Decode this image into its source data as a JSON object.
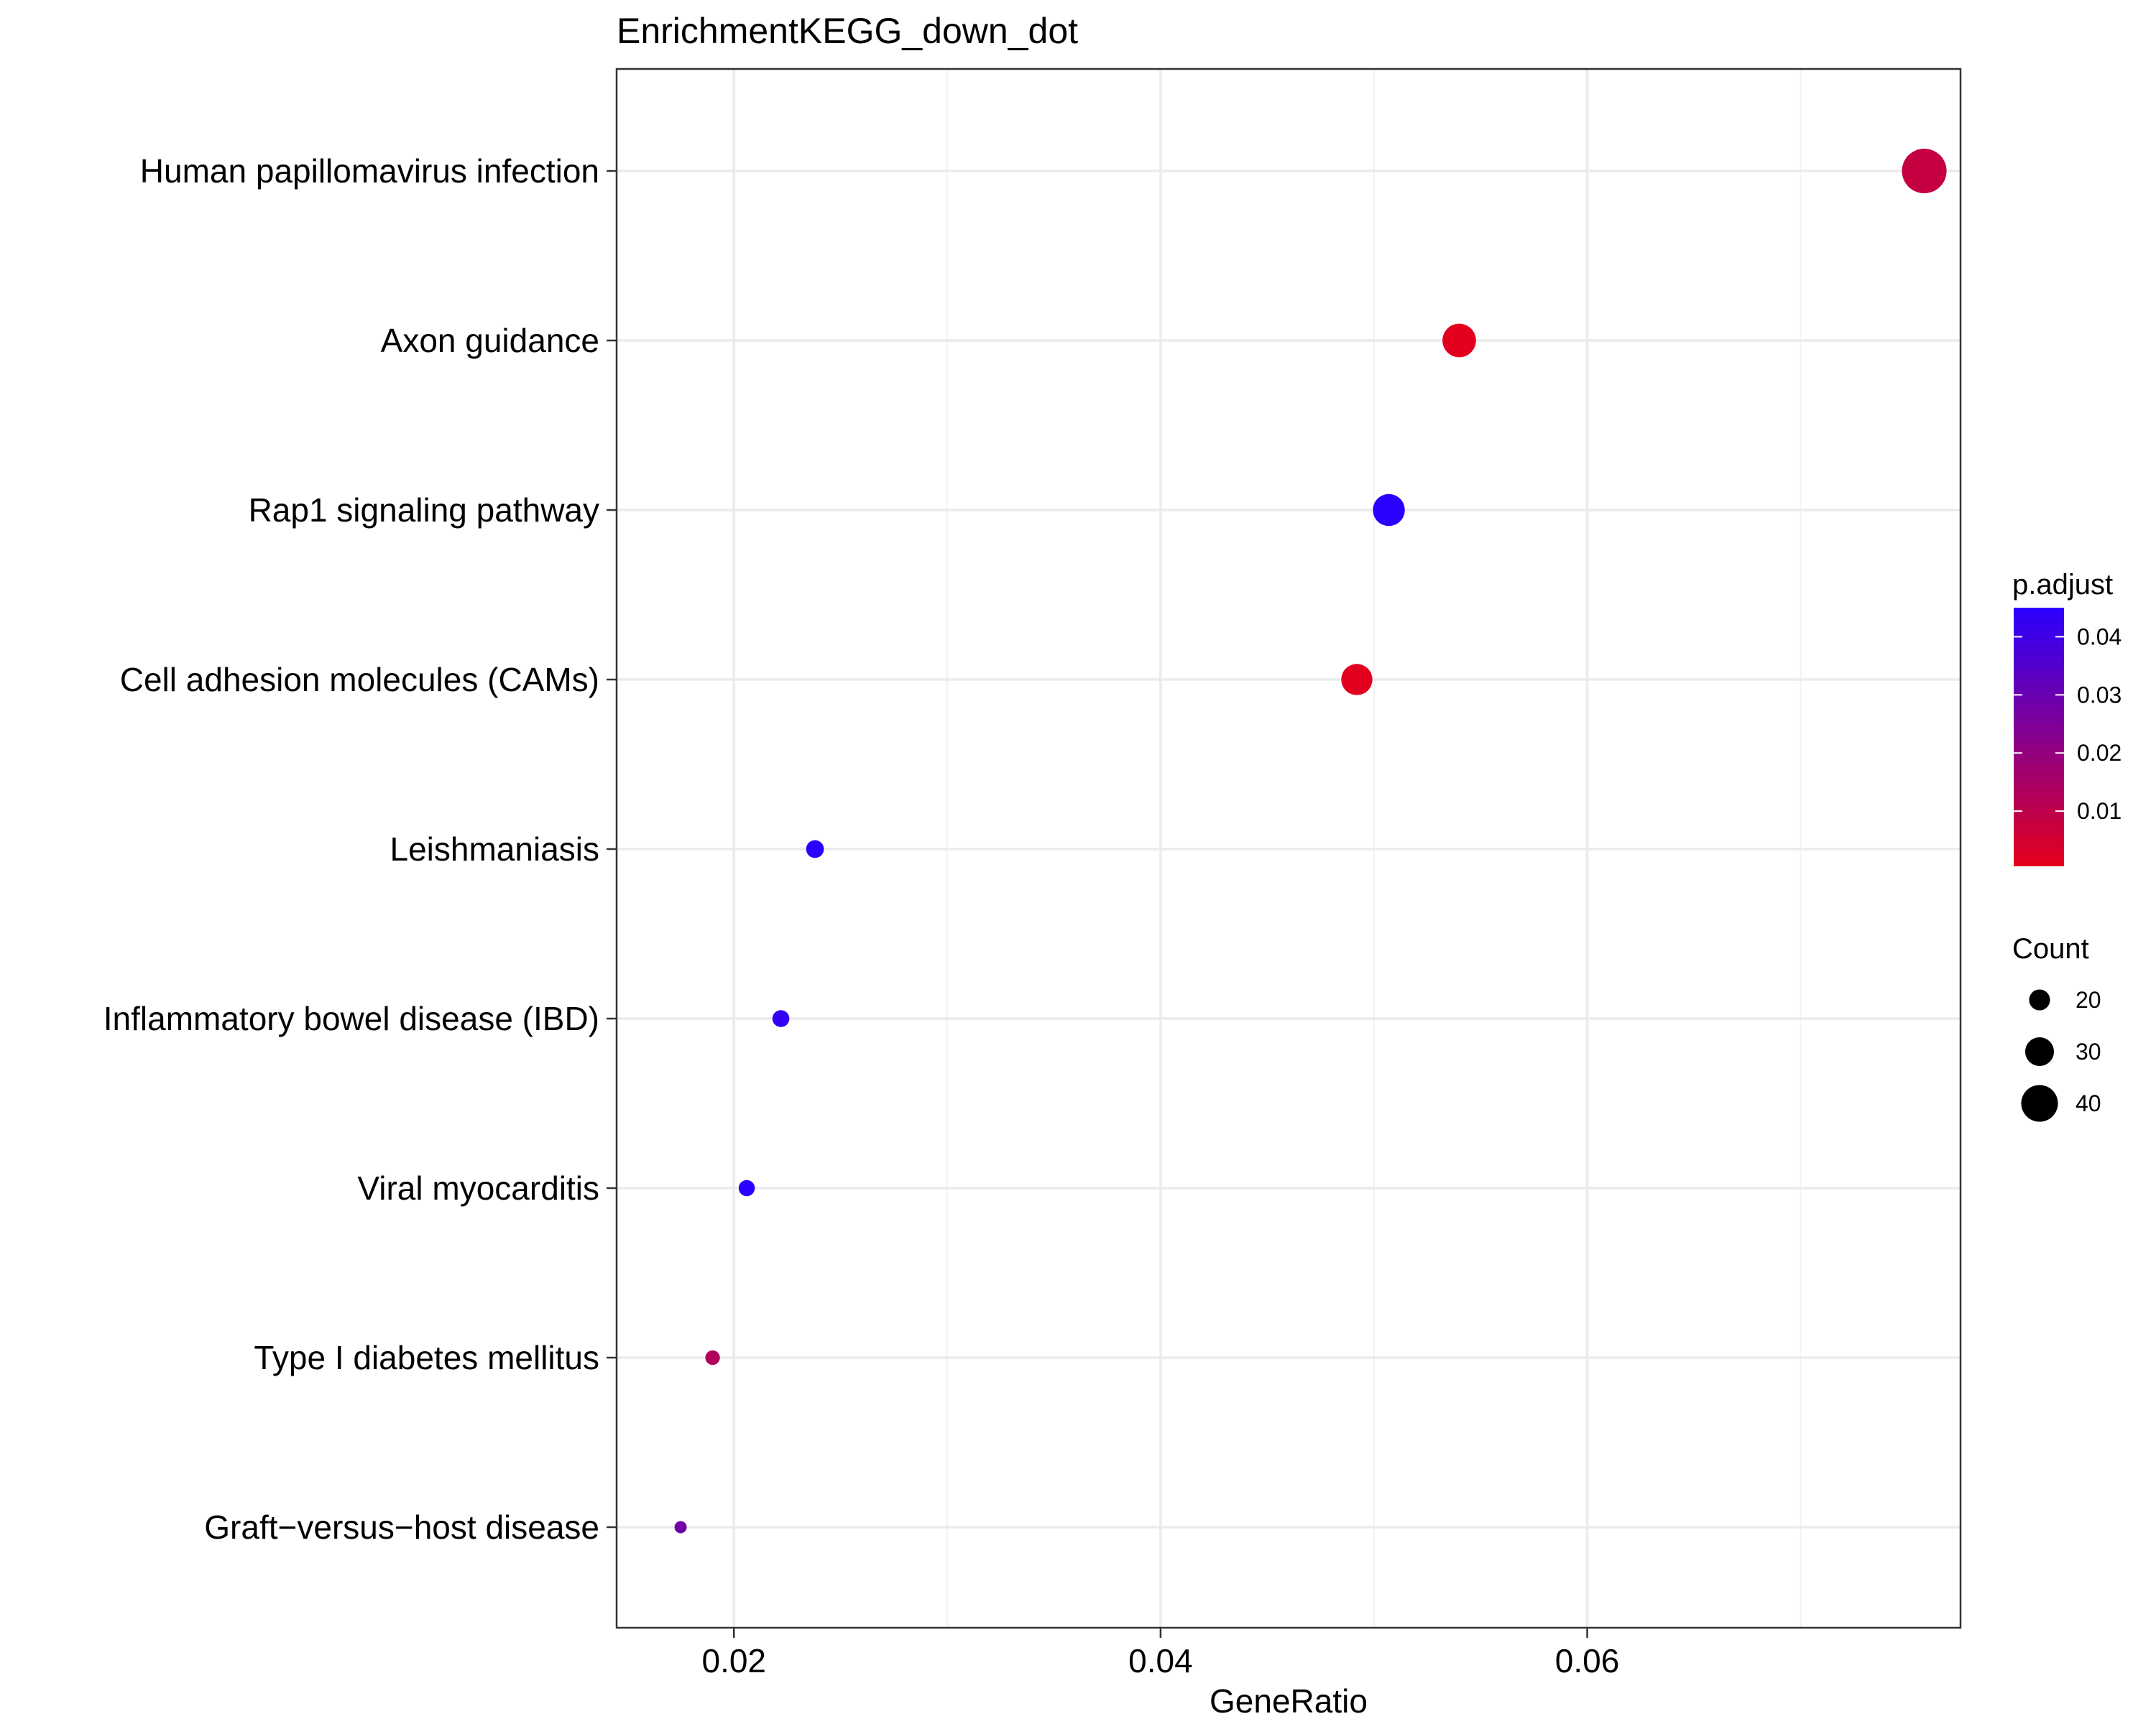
{
  "chart_data": {
    "type": "scatter",
    "title": "EnrichmentKEGG_down_dot",
    "xlabel": "GeneRatio",
    "ylabel": "",
    "xlim": [
      0.0145,
      0.0775
    ],
    "xticks": [
      {
        "value": 0.02,
        "label": "0.02"
      },
      {
        "value": 0.04,
        "label": "0.04"
      },
      {
        "value": 0.06,
        "label": "0.06"
      }
    ],
    "grid": true,
    "categories": [
      "Human papillomavirus infection",
      "Axon guidance",
      "Rap1 signaling pathway",
      "Cell adhesion molecules (CAMs)",
      "Leishmaniasis",
      "Inflammatory bowel disease (IBD)",
      "Viral myocarditis",
      "Type I diabetes mellitus",
      "Graft−versus−host disease"
    ],
    "points": [
      {
        "category": "Human papillomavirus infection",
        "x": 0.0758,
        "count": 50,
        "p_adjust": 0.008
      },
      {
        "category": "Axon guidance",
        "x": 0.054,
        "count": 36,
        "p_adjust": 0.001
      },
      {
        "category": "Rap1 signaling pathway",
        "x": 0.0507,
        "count": 34,
        "p_adjust": 0.045
      },
      {
        "category": "Cell adhesion molecules (CAMs)",
        "x": 0.0492,
        "count": 33,
        "p_adjust": 0.001
      },
      {
        "category": "Leishmaniasis",
        "x": 0.0238,
        "count": 16,
        "p_adjust": 0.045
      },
      {
        "category": "Inflammatory bowel disease (IBD)",
        "x": 0.0222,
        "count": 15,
        "p_adjust": 0.043
      },
      {
        "category": "Viral myocarditis",
        "x": 0.0206,
        "count": 14,
        "p_adjust": 0.045
      },
      {
        "category": "Type I diabetes mellitus",
        "x": 0.019,
        "count": 12,
        "p_adjust": 0.013
      },
      {
        "category": "Graft−versus−host disease",
        "x": 0.0175,
        "count": 9,
        "p_adjust": 0.028
      }
    ],
    "color_legend": {
      "title": "p.adjust",
      "min": 0.0005,
      "max": 0.045,
      "low_color": "#e5001b",
      "high_color": "#2a00ff",
      "ticks": [
        {
          "value": 0.04,
          "label": "0.04"
        },
        {
          "value": 0.03,
          "label": "0.03"
        },
        {
          "value": 0.02,
          "label": "0.02"
        },
        {
          "value": 0.01,
          "label": "0.01"
        }
      ]
    },
    "size_legend": {
      "title": "Count",
      "items": [
        {
          "value": 20,
          "label": "20"
        },
        {
          "value": 30,
          "label": "30"
        },
        {
          "value": 40,
          "label": "40"
        }
      ]
    },
    "legend_position": "right"
  }
}
